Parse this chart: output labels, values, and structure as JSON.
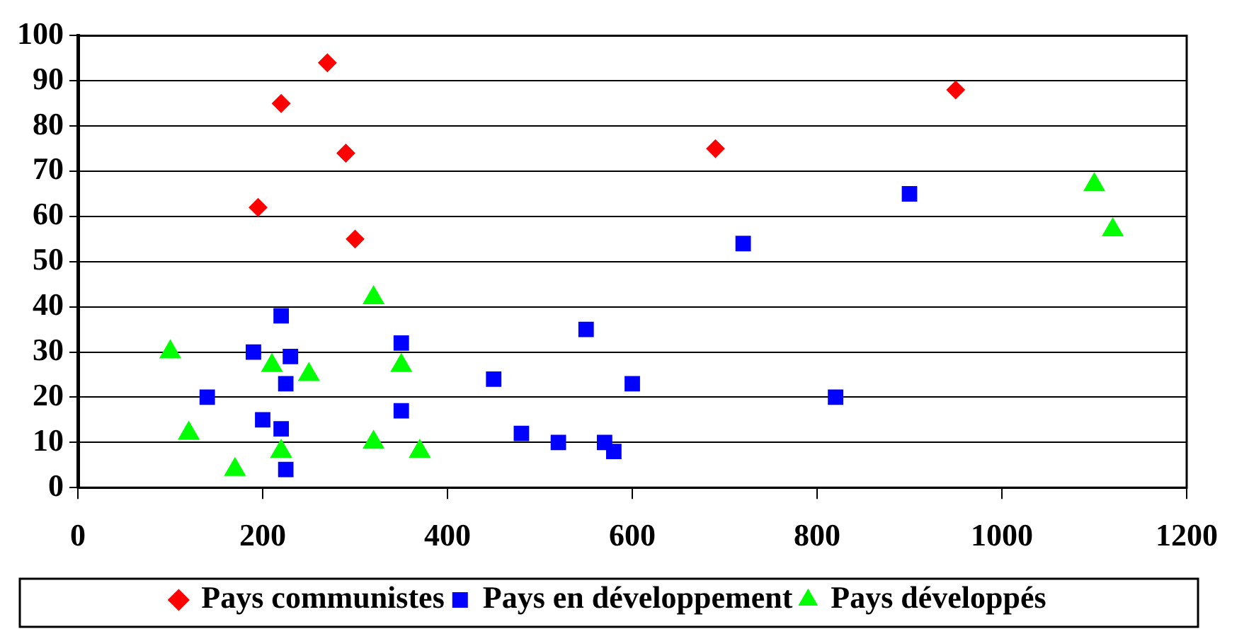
{
  "chart_data": {
    "type": "scatter",
    "series": [
      {
        "name": "Pays communistes",
        "color": "#ff0000",
        "marker": "diamond",
        "x": [
          195,
          220,
          270,
          290,
          300,
          690,
          950
        ],
        "values": [
          62,
          85,
          94,
          74,
          55,
          75,
          88
        ]
      },
      {
        "name": "Pays en développement",
        "color": "#0000ff",
        "marker": "square",
        "x": [
          140,
          190,
          200,
          220,
          220,
          225,
          230,
          225,
          350,
          350,
          450,
          480,
          520,
          550,
          570,
          580,
          600,
          720,
          820,
          900
        ],
        "values": [
          20,
          30,
          15,
          38,
          13,
          23,
          29,
          4,
          32,
          17,
          24,
          12,
          10,
          35,
          10,
          8,
          23,
          54,
          20,
          65
        ]
      },
      {
        "name": "Pays développés",
        "color": "#00ff00",
        "marker": "triangle",
        "x": [
          100,
          120,
          170,
          210,
          220,
          250,
          320,
          320,
          350,
          370,
          1100,
          1120
        ],
        "values": [
          30,
          12,
          4,
          27,
          8,
          25,
          42,
          10,
          27,
          8,
          67,
          57
        ]
      }
    ],
    "xlim": [
      0,
      1200
    ],
    "xticks": [
      0,
      200,
      400,
      600,
      800,
      1000,
      1200
    ],
    "ylim": [
      0,
      100
    ],
    "yticks": [
      0,
      10,
      20,
      30,
      40,
      50,
      60,
      70,
      80,
      90,
      100
    ],
    "grid": "y",
    "legend": "bottom"
  }
}
